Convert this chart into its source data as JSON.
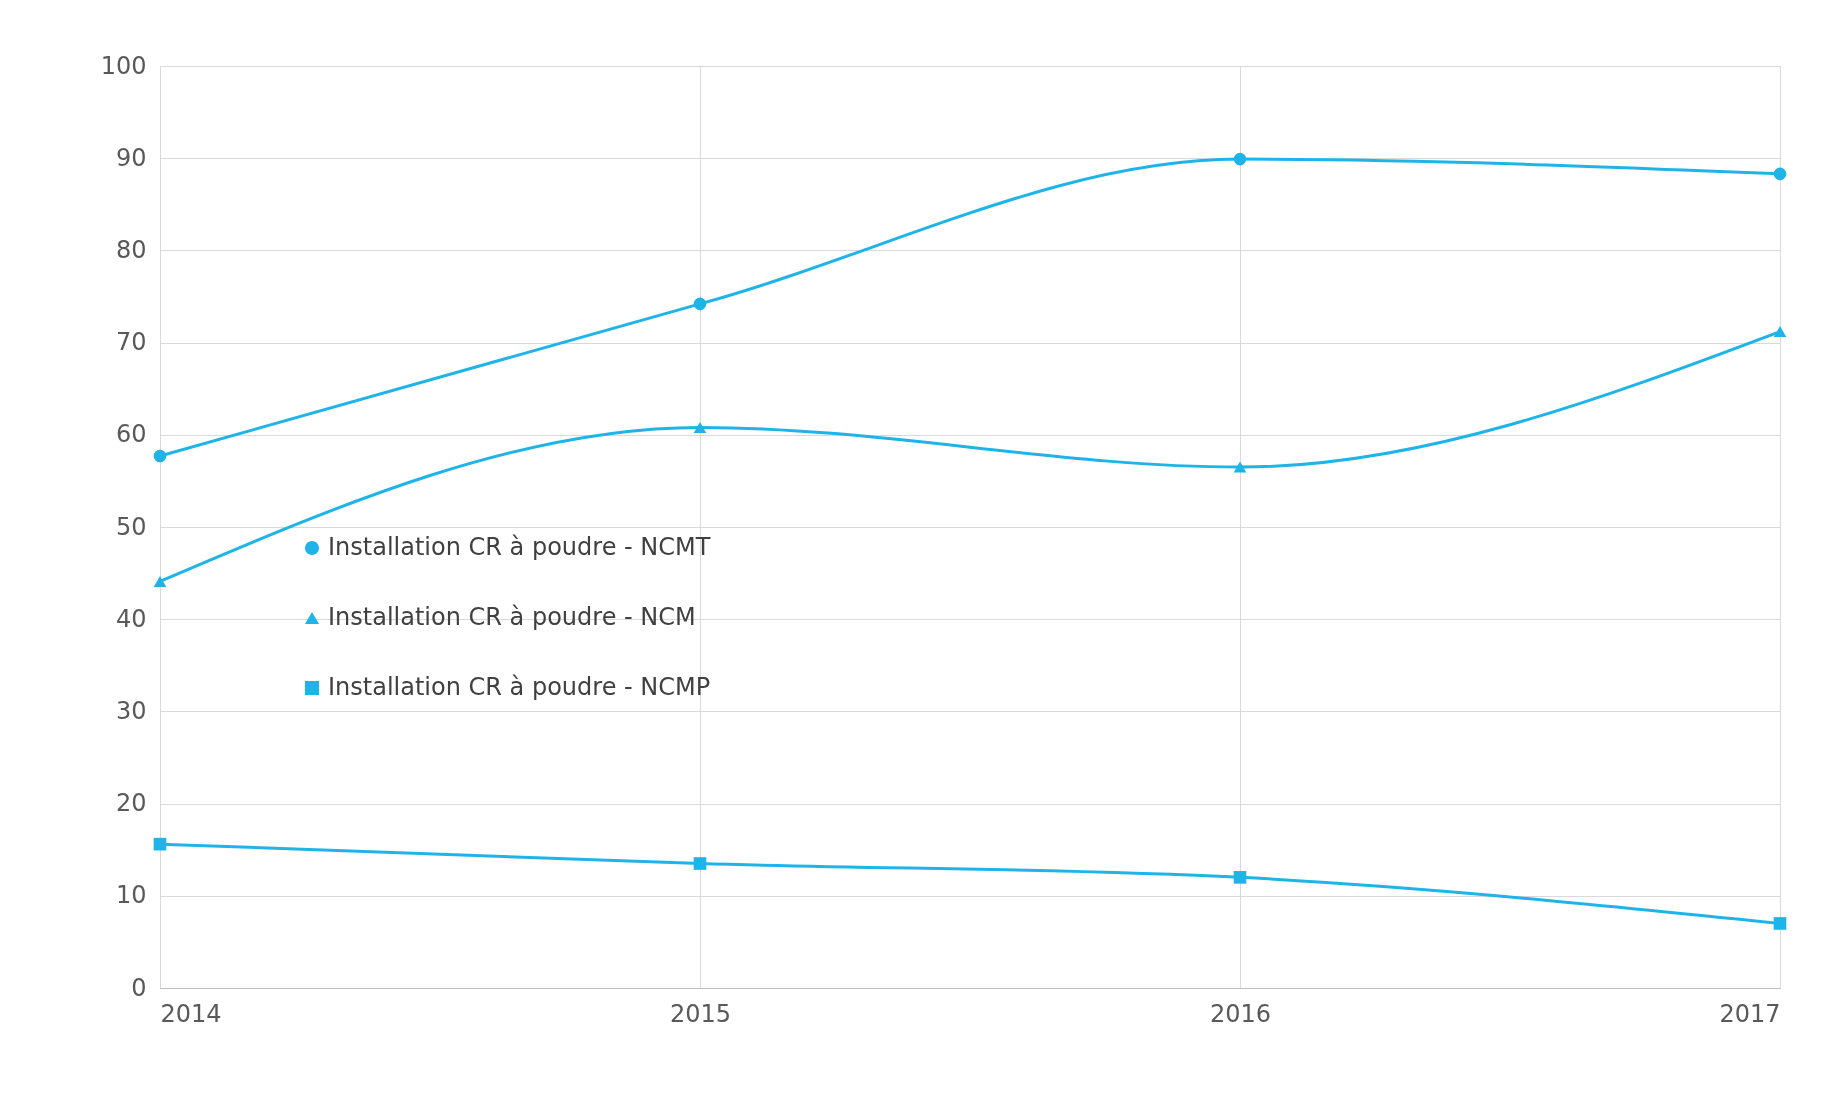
{
  "chart_data": {
    "type": "line",
    "x": [
      2014,
      2015,
      2016,
      2017
    ],
    "series": [
      {
        "name": "Installation CR à poudre - NCMT",
        "color": "#1fb4e8",
        "marker": "circle",
        "values": [
          57.7,
          74.2,
          89.9,
          88.3
        ]
      },
      {
        "name": "Installation CR à poudre - NCM",
        "color": "#1fb4e8",
        "marker": "triangle",
        "values": [
          44.1,
          60.8,
          56.5,
          71.2
        ]
      },
      {
        "name": "Installation CR à poudre - NCMP",
        "color": "#1fb4e8",
        "marker": "square",
        "values": [
          15.6,
          13.5,
          12.0,
          7.0
        ]
      }
    ],
    "xlim": [
      2014,
      2017
    ],
    "xticks": [
      2014,
      2015,
      2016,
      2017
    ],
    "ylim": [
      0,
      100
    ],
    "yticks": [
      0,
      10,
      20,
      30,
      40,
      50,
      60,
      70,
      80,
      90,
      100
    ],
    "grid": true,
    "legend": "left",
    "line_style": "solid"
  }
}
